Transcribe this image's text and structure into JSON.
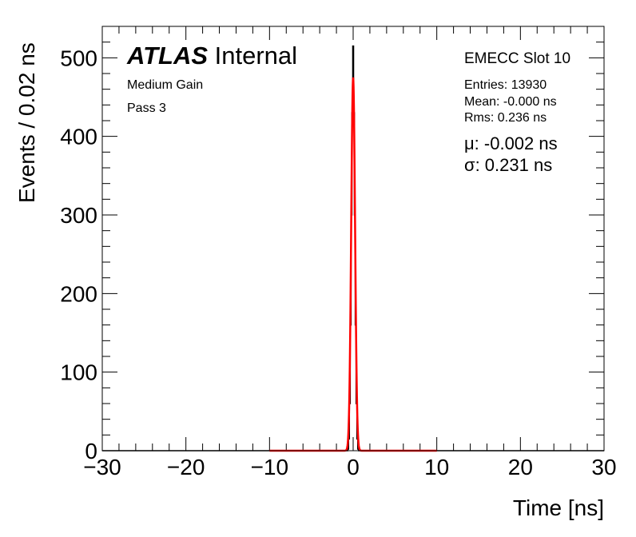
{
  "chart_data": {
    "type": "histogram",
    "title": "",
    "xlabel": "Time [ns]",
    "ylabel": "Events / 0.02 ns",
    "xlim": [
      -30,
      30
    ],
    "ylim": [
      0,
      540
    ],
    "x_ticks": [
      -30,
      -20,
      -10,
      0,
      10,
      20,
      30
    ],
    "x_tick_labels": [
      "−30",
      "−20",
      "−10",
      "0",
      "10",
      "20",
      "30"
    ],
    "y_ticks": [
      0,
      100,
      200,
      300,
      400,
      500
    ],
    "y_tick_labels": [
      "0",
      "100",
      "200",
      "300",
      "400",
      "500"
    ],
    "histogram": {
      "color": "#000000",
      "x": [
        -0.6,
        -0.5,
        -0.4,
        -0.3,
        -0.2,
        -0.1,
        0.0,
        0.1,
        0.2,
        0.3,
        0.4,
        0.5,
        0.6
      ],
      "y": [
        2,
        15,
        60,
        160,
        300,
        430,
        515,
        430,
        300,
        160,
        60,
        15,
        2
      ]
    },
    "fit": {
      "color": "#ff0000",
      "function": "gaussian",
      "amplitude": 475,
      "mean": -0.002,
      "sigma": 0.231,
      "x_range": [
        -10,
        10
      ]
    },
    "grid": false,
    "legend": "none"
  },
  "labels": {
    "atlas": "ATLAS",
    "internal": "Internal",
    "gain": "Medium Gain",
    "pass": "Pass 3",
    "slot": "EMECC Slot 10",
    "entries": "Entries: 13930",
    "mean": "Mean: -0.000 ns",
    "rms": "Rms: 0.236 ns",
    "mu": "μ: -0.002 ns",
    "sigma": "σ: 0.231 ns",
    "xlabel": "Time [ns]",
    "ylabel": "Events / 0.02 ns"
  }
}
